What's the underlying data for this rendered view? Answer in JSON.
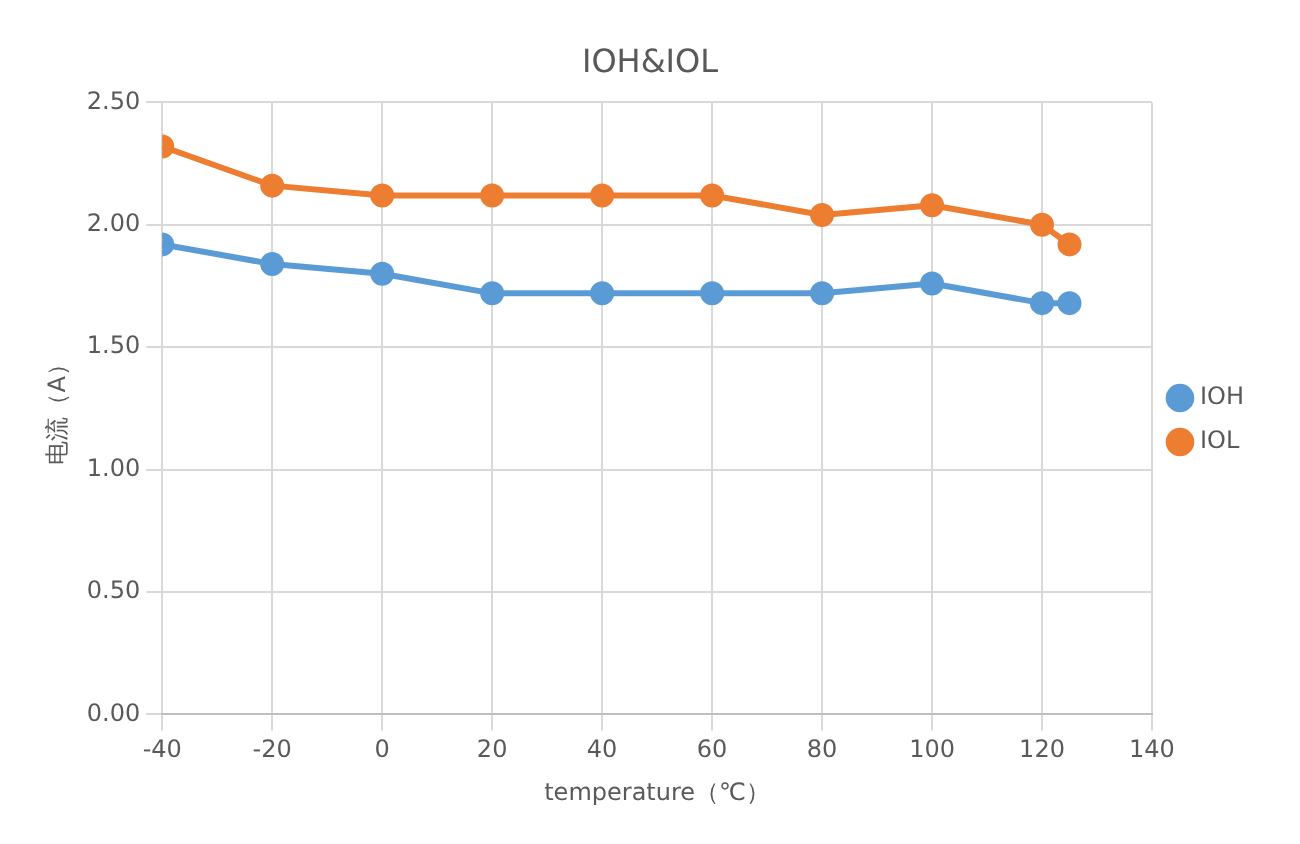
{
  "chart_data": {
    "type": "line",
    "title": "IOH&IOL",
    "xlabel": "temperature（℃）",
    "ylabel": "电流（A）",
    "x": [
      -40,
      -20,
      0,
      20,
      40,
      60,
      80,
      100,
      120,
      125
    ],
    "series": [
      {
        "name": "IOH",
        "color": "#5b9bd5",
        "values": [
          1.92,
          1.84,
          1.8,
          1.72,
          1.72,
          1.72,
          1.72,
          1.76,
          1.68,
          1.68
        ]
      },
      {
        "name": "IOL",
        "color": "#ed7d31",
        "values": [
          2.32,
          2.16,
          2.12,
          2.12,
          2.12,
          2.12,
          2.04,
          2.08,
          2.0,
          1.92
        ]
      }
    ],
    "xlim": [
      -40,
      140
    ],
    "xticks": [
      -40,
      -20,
      0,
      20,
      40,
      60,
      80,
      100,
      120,
      140
    ],
    "ylim": [
      0,
      2.5
    ],
    "yticks": [
      {
        "value": 0,
        "label": "0.00"
      },
      {
        "value": 0.5,
        "label": "0.50"
      },
      {
        "value": 1,
        "label": "1.00"
      },
      {
        "value": 1.5,
        "label": "1.50"
      },
      {
        "value": 2,
        "label": "2.00"
      },
      {
        "value": 2.5,
        "label": "2.50"
      }
    ],
    "grid": true,
    "legend": "right",
    "marker": "circle",
    "line_style": "solid"
  }
}
